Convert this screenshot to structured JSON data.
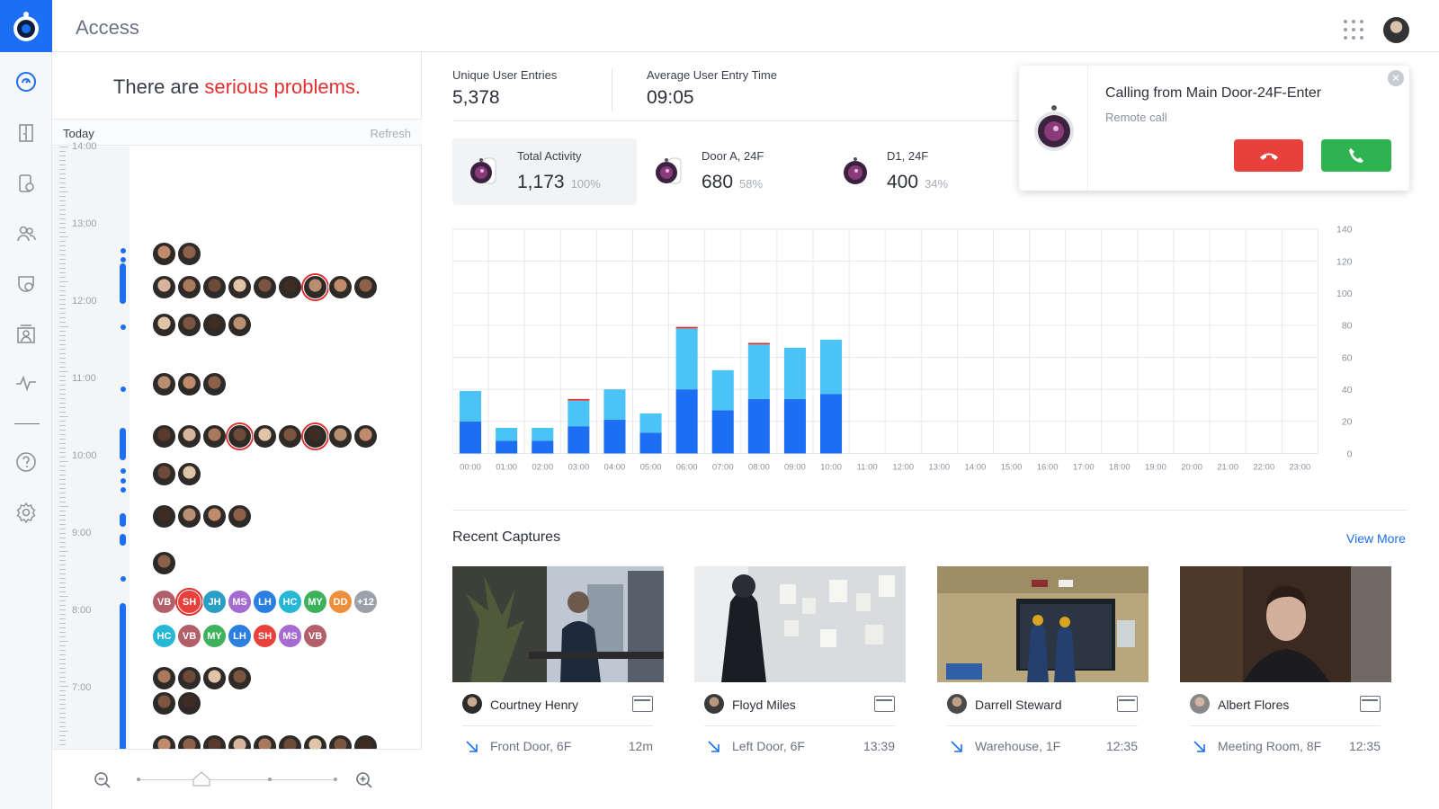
{
  "app": {
    "title": "Access"
  },
  "sidebar": {
    "items": [
      "dashboard",
      "doors",
      "devices",
      "users",
      "policies",
      "visitors",
      "activity",
      "help",
      "settings"
    ]
  },
  "timeline": {
    "headline_prefix": "There are ",
    "headline_emphasis": "serious problems.",
    "today_label": "Today",
    "refresh_label": "Refresh",
    "hour_labels": [
      "14:00",
      "13:00",
      "12:00",
      "11:00",
      "10:00",
      "9:00",
      "8:00",
      "7:00"
    ],
    "initials_row_1": [
      "VB",
      "SH",
      "JH",
      "MS",
      "LH",
      "HC",
      "MY",
      "DD",
      "+12"
    ],
    "initials_row_2": [
      "HC",
      "VB",
      "MY",
      "LH",
      "SH",
      "MS",
      "VB"
    ]
  },
  "stats": {
    "unique_label": "Unique User Entries",
    "unique_value": "5,378",
    "avg_label": "Average User Entry Time",
    "avg_value": "09:05",
    "total_label": "Total Activity",
    "total_value": "1,173",
    "total_pct": "100%",
    "door_a_label": "Door A, 24F",
    "door_a_value": "680",
    "door_a_pct": "58%",
    "d1_label": "D1, 24F",
    "d1_value": "400",
    "d1_pct": "34%"
  },
  "call": {
    "title": "Calling from Main Door-24F-Enter",
    "subtitle": "Remote call"
  },
  "chart_data": {
    "type": "bar",
    "stacked": true,
    "categories": [
      "00:00",
      "01:00",
      "02:00",
      "03:00",
      "04:00",
      "05:00",
      "06:00",
      "07:00",
      "08:00",
      "09:00",
      "10:00",
      "11:00",
      "12:00",
      "13:00",
      "14:00",
      "15:00",
      "16:00",
      "17:00",
      "18:00",
      "19:00",
      "20:00",
      "21:00",
      "22:00",
      "23:00"
    ],
    "series": [
      {
        "values": [
          20,
          8,
          8,
          17,
          21,
          13,
          40,
          27,
          34,
          34,
          37,
          0,
          0,
          0,
          0,
          0,
          0,
          0,
          0,
          0,
          0,
          0,
          0,
          0
        ]
      },
      {
        "values": [
          19,
          8,
          8,
          16,
          19,
          12,
          38,
          25,
          34,
          32,
          34,
          0,
          0,
          0,
          0,
          0,
          0,
          0,
          0,
          0,
          0,
          0,
          0,
          0
        ]
      },
      {
        "values": [
          0,
          0,
          0,
          1,
          0,
          0,
          1,
          0,
          1,
          0,
          0,
          0,
          0,
          0,
          0,
          0,
          0,
          0,
          0,
          0,
          0,
          0,
          0,
          0
        ]
      }
    ],
    "ylim": [
      0,
      140
    ],
    "yticks": [
      0,
      20,
      40,
      60,
      80,
      100,
      120,
      140
    ],
    "colors": [
      "#1c6ef2",
      "#4cc3f7",
      "#e03131"
    ],
    "grid": true
  },
  "captures": {
    "title": "Recent Captures",
    "view_more": "View More",
    "items": [
      {
        "name": "Courtney Henry",
        "location": "Front Door, 6F",
        "time": "12m"
      },
      {
        "name": "Floyd Miles",
        "location": "Left Door, 6F",
        "time": "13:39"
      },
      {
        "name": "Darrell Steward",
        "location": "Warehouse, 1F",
        "time": "12:35"
      },
      {
        "name": "Albert Flores",
        "location": "Meeting Room, 8F",
        "time": "12:35"
      }
    ]
  }
}
